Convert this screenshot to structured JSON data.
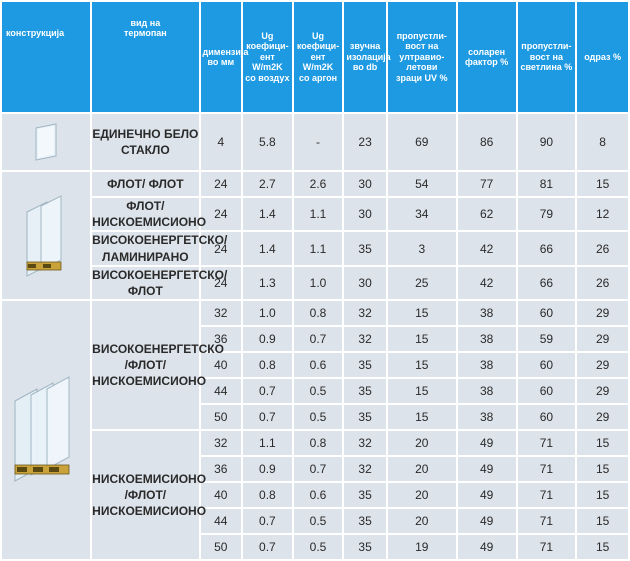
{
  "headers": [
    "конструкција",
    "вид на\nтермопан",
    "димензија\nво мм",
    "Ug\nкоефици-\nент W/m2K\nсо воздух",
    "Ug\nкоефици-\nент W/m2K\nсо аргон",
    "звучна\nизолација\nво db",
    "пропустли-\nвост на\nултравио-\nлетови\nзраци UV %",
    "соларен\nфактор %",
    "пропустли-\nвост на\nсветлина %",
    "одраз %"
  ],
  "single": {
    "type": "ЕДИНЕЧНО БЕЛО\nСТАКЛО",
    "row": [
      "4",
      "5.8",
      "-",
      "23",
      "69",
      "86",
      "90",
      "8"
    ]
  },
  "double": [
    {
      "type": "ФЛОТ/ ФЛОТ",
      "row": [
        "24",
        "2.7",
        "2.6",
        "30",
        "54",
        "77",
        "81",
        "15"
      ]
    },
    {
      "type": "ФЛОТ/\nНИСКОЕМИСИОНО",
      "row": [
        "24",
        "1.4",
        "1.1",
        "30",
        "34",
        "62",
        "79",
        "12"
      ]
    },
    {
      "type": "ВИСОКОЕНЕРГЕТСКО/\nЛАМИНИРАНО",
      "row": [
        "24",
        "1.4",
        "1.1",
        "35",
        "3",
        "42",
        "66",
        "26"
      ]
    },
    {
      "type": "ВИСОКОЕНЕРГЕТСКО/\nФЛОТ",
      "row": [
        "24",
        "1.3",
        "1.0",
        "30",
        "25",
        "42",
        "66",
        "26"
      ]
    }
  ],
  "triple_a": {
    "type": "ВИСОКОЕНЕРГЕТСКО\n/ФЛОТ/\nНИСКОЕМИСИОНО",
    "rows": [
      [
        "32",
        "1.0",
        "0.8",
        "32",
        "15",
        "38",
        "60",
        "29"
      ],
      [
        "36",
        "0.9",
        "0.7",
        "32",
        "15",
        "38",
        "59",
        "29"
      ],
      [
        "40",
        "0.8",
        "0.6",
        "35",
        "15",
        "38",
        "60",
        "29"
      ],
      [
        "44",
        "0.7",
        "0.5",
        "35",
        "15",
        "38",
        "60",
        "29"
      ],
      [
        "50",
        "0.7",
        "0.5",
        "35",
        "15",
        "38",
        "60",
        "29"
      ]
    ]
  },
  "triple_b": {
    "type": "НИСКОЕМИСИОНО\n/ФЛОТ/\nНИСКОЕМИСИОНО",
    "rows": [
      [
        "32",
        "1.1",
        "0.8",
        "32",
        "20",
        "49",
        "71",
        "15"
      ],
      [
        "36",
        "0.9",
        "0.7",
        "32",
        "20",
        "49",
        "71",
        "15"
      ],
      [
        "40",
        "0.8",
        "0.6",
        "35",
        "20",
        "49",
        "71",
        "15"
      ],
      [
        "44",
        "0.7",
        "0.5",
        "35",
        "20",
        "49",
        "71",
        "15"
      ],
      [
        "50",
        "0.7",
        "0.5",
        "35",
        "19",
        "49",
        "71",
        "15"
      ]
    ]
  }
}
